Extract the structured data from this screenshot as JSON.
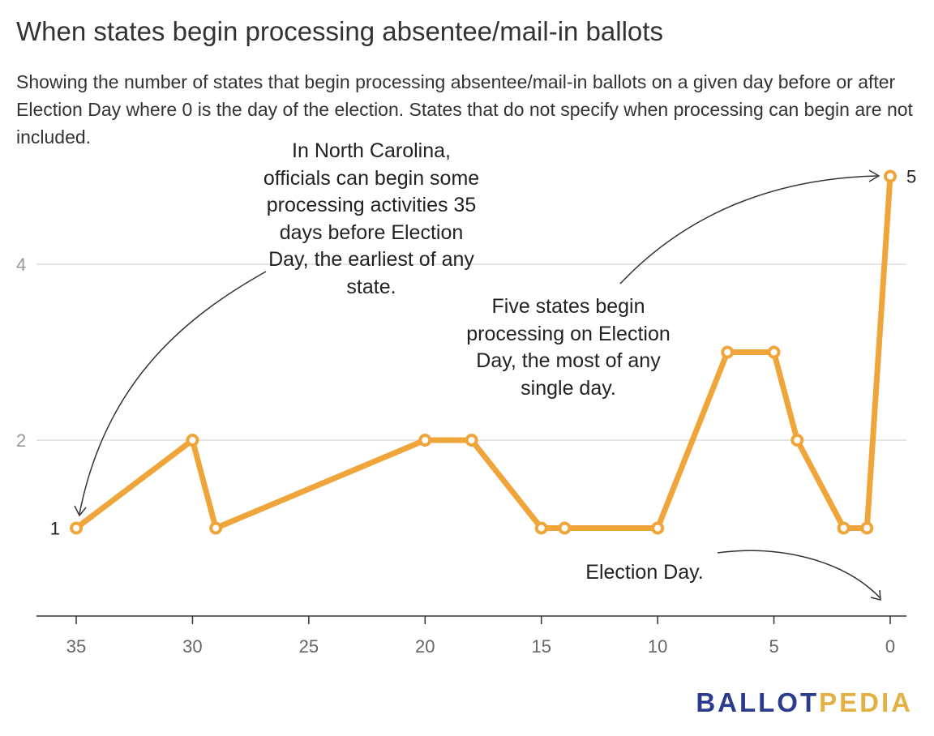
{
  "title": "When states begin processing absentee/mail-in ballots",
  "subtitle": "Showing the number of states that begin processing absentee/mail-in ballots on a given day before or after Election Day where 0 is the day of the election. States that do not specify when processing can begin are not included.",
  "annotations": {
    "north_carolina": "In North Carolina, officials can begin some processing activities 35 days before Election Day, the earliest of any state.",
    "five_states": "Five states begin processing on Election Day, the most of any single day.",
    "election_day": "Election Day."
  },
  "logo": {
    "part1": "BALLOT",
    "part2": "PEDIA"
  },
  "chart_data": {
    "type": "line",
    "title": "When states begin processing absentee/mail-in ballots",
    "xlabel": "",
    "ylabel": "",
    "x_reversed": true,
    "xlim": [
      35,
      0
    ],
    "ylim": [
      0,
      5
    ],
    "x_ticks": [
      35,
      30,
      25,
      20,
      15,
      10,
      5,
      0
    ],
    "y_ticks": [
      2,
      4
    ],
    "grid": true,
    "series": [
      {
        "x": [
          35,
          30,
          29,
          20,
          18,
          15,
          14,
          10,
          7,
          5,
          4,
          2,
          1,
          0
        ],
        "y": [
          1,
          2,
          1,
          2,
          2,
          1,
          1,
          1,
          3,
          3,
          2,
          1,
          1,
          5
        ]
      }
    ],
    "point_labels": [
      {
        "x": 35,
        "y": 1,
        "text": "1"
      },
      {
        "x": 0,
        "y": 5,
        "text": "5"
      }
    ],
    "line_color": "#f0a53a",
    "gridline_color": "#dddddd",
    "axis_color": "#333333"
  }
}
